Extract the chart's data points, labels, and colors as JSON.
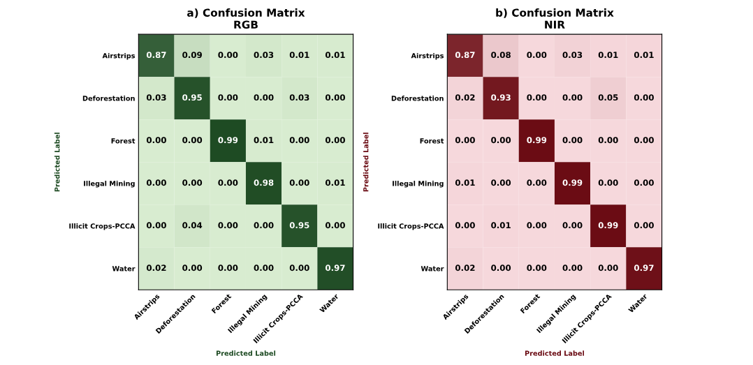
{
  "chart_data": [
    {
      "type": "heatmap",
      "title": "a) Confusion Matrix\nRGB",
      "xlabel": "Predicted Label",
      "ylabel": "Predicted Label",
      "categories": [
        "Airstrips",
        "Deforestation",
        "Forest",
        "Illegal Mining",
        "Illicit Crops-PCCA",
        "Water"
      ],
      "y_categories": [
        "Airstrips",
        "Deforestation",
        "Forest",
        "Illegal Mining",
        "Illicit Crops-PCCA",
        "Water"
      ],
      "cells": [
        [
          0.87,
          0.09,
          0.0,
          0.03,
          0.01,
          0.01
        ],
        [
          0.03,
          0.95,
          0.0,
          0.0,
          0.03,
          0.0
        ],
        [
          0.0,
          0.0,
          0.99,
          0.01,
          0.0,
          0.0
        ],
        [
          0.0,
          0.0,
          0.0,
          0.98,
          0.0,
          0.01
        ],
        [
          0.0,
          0.04,
          0.0,
          0.0,
          0.95,
          0.0
        ],
        [
          0.02,
          0.0,
          0.0,
          0.0,
          0.0,
          0.97
        ]
      ],
      "cell_labels": [
        [
          "0.87",
          "0.09",
          "0.00",
          "0.03",
          "0.01",
          "0.01"
        ],
        [
          "0.03",
          "0.95",
          "0.00",
          "0.00",
          "0.03",
          "0.00"
        ],
        [
          "0.00",
          "0.00",
          "0.99",
          "0.01",
          "0.00",
          "0.00"
        ],
        [
          "0.00",
          "0.00",
          "0.00",
          "0.98",
          "0.00",
          "0.01"
        ],
        [
          "0.00",
          "0.04",
          "0.00",
          "0.00",
          "0.95",
          "0.00"
        ],
        [
          "0.02",
          "0.00",
          "0.00",
          "0.00",
          "0.00",
          "0.97"
        ]
      ],
      "colors": [
        "#d8ecd0",
        "#1d4a22"
      ],
      "data_labels": true
    },
    {
      "type": "heatmap",
      "title": "b) Confusion Matrix\nNIR",
      "xlabel": "Predicted Label",
      "ylabel": "Predicted Label",
      "categories": [
        "Airstrips",
        "Deforestation",
        "Forest",
        "Illegal Mining",
        "Illicit Crops-PCCA",
        "Water"
      ],
      "y_categories": [
        "Airstrips",
        "Deforestation",
        "Forest",
        "Illegal Mining",
        "Illicit Crops-PCCA",
        "Water"
      ],
      "cells": [
        [
          0.87,
          0.08,
          0.0,
          0.03,
          0.01,
          0.01
        ],
        [
          0.02,
          0.93,
          0.0,
          0.0,
          0.05,
          0.0
        ],
        [
          0.0,
          0.0,
          0.99,
          0.0,
          0.0,
          0.0
        ],
        [
          0.01,
          0.0,
          0.0,
          0.99,
          0.0,
          0.0
        ],
        [
          0.0,
          0.01,
          0.0,
          0.0,
          0.99,
          0.0
        ],
        [
          0.02,
          0.0,
          0.0,
          0.0,
          0.0,
          0.97
        ]
      ],
      "cell_labels": [
        [
          "0.87",
          "0.08",
          "0.00",
          "0.03",
          "0.01",
          "0.01"
        ],
        [
          "0.02",
          "0.93",
          "0.00",
          "0.00",
          "0.05",
          "0.00"
        ],
        [
          "0.00",
          "0.00",
          "0.99",
          "0.00",
          "0.00",
          "0.00"
        ],
        [
          "0.01",
          "0.00",
          "0.00",
          "0.99",
          "0.00",
          "0.00"
        ],
        [
          "0.00",
          "0.01",
          "0.00",
          "0.00",
          "0.99",
          "0.00"
        ],
        [
          "0.02",
          "0.00",
          "0.00",
          "0.00",
          "0.00",
          "0.97"
        ]
      ],
      "colors": [
        "#f6d8dc",
        "#6a0a12"
      ],
      "data_labels": true
    }
  ]
}
